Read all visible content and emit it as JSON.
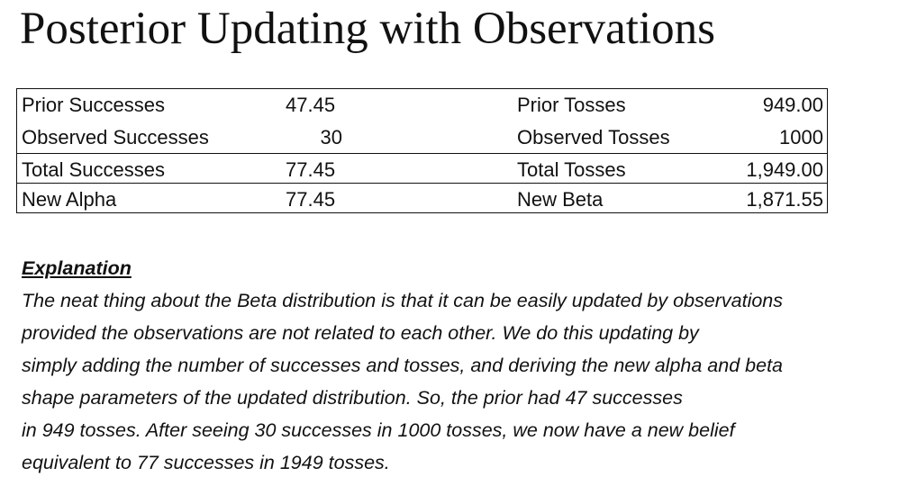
{
  "title": "Posterior Updating with Observations",
  "table": {
    "rows": [
      {
        "label_left": "Prior Successes",
        "value_left": "47.45",
        "label_right": "Prior Tosses",
        "value_right": "949.00"
      },
      {
        "label_left": "Observed Successes",
        "value_left": "30",
        "label_right": "Observed Tosses",
        "value_right": "1000"
      },
      {
        "label_left": "Total Successes",
        "value_left": "77.45",
        "label_right": "Total Tosses",
        "value_right": "1,949.00"
      },
      {
        "label_left": "New Alpha",
        "value_left": "77.45",
        "label_right": "New Beta",
        "value_right": "1,871.55"
      }
    ]
  },
  "explanation": {
    "heading": "Explanation",
    "lines": [
      "The neat thing about the Beta distribution is that it can be easily updated by observations",
      "provided the observations are not related to each other.  We do this updating by",
      "simply adding the number of successes and tosses, and deriving the new alpha and beta",
      "shape parameters of the updated distribution. So, the prior had 47 successes",
      "in 949 tosses. After seeing 30 successes in 1000 tosses, we now have a new belief",
      "equivalent to 77 successes in 1949 tosses."
    ]
  }
}
